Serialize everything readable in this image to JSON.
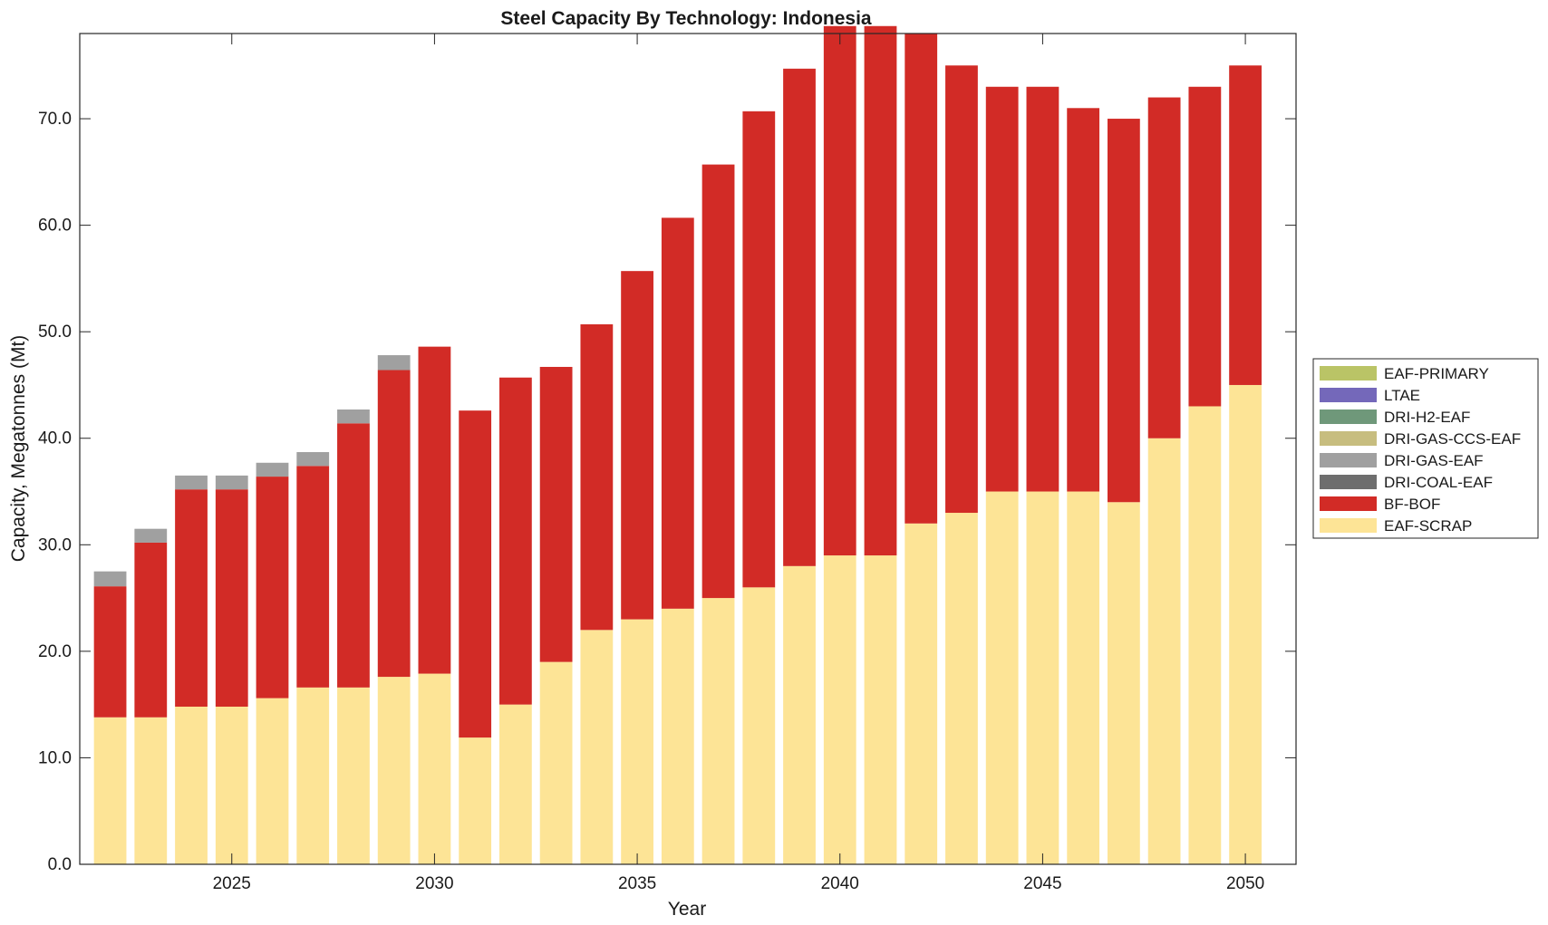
{
  "chart_data": {
    "type": "bar",
    "stacked": true,
    "title": "Steel Capacity By Technology: Indonesia",
    "xlabel": "Year",
    "ylabel": "Capacity, Megatonnes (Mt)",
    "xlim": [
      2021.25,
      2051.25
    ],
    "ylim": [
      0,
      78
    ],
    "x": [
      2022,
      2023,
      2024,
      2025,
      2026,
      2027,
      2028,
      2029,
      2030,
      2031,
      2032,
      2033,
      2034,
      2035,
      2036,
      2037,
      2038,
      2039,
      2040,
      2041,
      2042,
      2043,
      2044,
      2045,
      2046,
      2047,
      2048,
      2049,
      2050
    ],
    "x_ticks": [
      2025,
      2030,
      2035,
      2040,
      2045,
      2050
    ],
    "y_ticks": [
      0,
      10,
      20,
      30,
      40,
      50,
      60,
      70
    ],
    "y_tick_labels": [
      "0.0",
      "10.0",
      "20.0",
      "30.0",
      "40.0",
      "50.0",
      "60.0",
      "70.0"
    ],
    "series": [
      {
        "name": "EAF-SCRAP",
        "color": "#fde496",
        "values": [
          13.8,
          13.8,
          14.8,
          14.8,
          15.6,
          16.6,
          16.6,
          17.6,
          17.9,
          11.9,
          15.0,
          19.0,
          22.0,
          23.0,
          24.0,
          25.0,
          26.0,
          28.0,
          29.0,
          29.0,
          32.0,
          33.0,
          35.0,
          35.0,
          35.0,
          34.0,
          40.0,
          43.0,
          45.0
        ]
      },
      {
        "name": "BF-BOF",
        "color": "#d22b26",
        "values": [
          12.3,
          16.4,
          20.4,
          20.4,
          20.8,
          20.8,
          24.8,
          28.8,
          30.7,
          30.7,
          30.7,
          27.7,
          28.7,
          32.7,
          36.7,
          40.7,
          44.7,
          46.7,
          49.7,
          49.7,
          46.0,
          42.0,
          38.0,
          38.0,
          36.0,
          36.0,
          32.0,
          30.0,
          30.0
        ]
      },
      {
        "name": "DRI-COAL-EAF",
        "color": "#6e6e6e",
        "values": [
          0,
          0,
          0,
          0,
          0,
          0,
          0,
          0,
          0,
          0,
          0,
          0,
          0,
          0,
          0,
          0,
          0,
          0,
          0,
          0,
          0,
          0,
          0,
          0,
          0,
          0,
          0,
          0,
          0
        ]
      },
      {
        "name": "DRI-GAS-EAF",
        "color": "#a0a0a0",
        "values": [
          1.4,
          1.3,
          1.3,
          1.3,
          1.3,
          1.3,
          1.3,
          1.4,
          0,
          0,
          0,
          0,
          0,
          0,
          0,
          0,
          0,
          0,
          0,
          0,
          0,
          0,
          0,
          0,
          0,
          0,
          0,
          0,
          0
        ]
      },
      {
        "name": "DRI-GAS-CCS-EAF",
        "color": "#c7bd7f",
        "values": [
          0,
          0,
          0,
          0,
          0,
          0,
          0,
          0,
          0,
          0,
          0,
          0,
          0,
          0,
          0,
          0,
          0,
          0,
          0,
          0,
          0,
          0,
          0,
          0,
          0,
          0,
          0,
          0,
          0
        ]
      },
      {
        "name": "DRI-H2-EAF",
        "color": "#6f987a",
        "values": [
          0,
          0,
          0,
          0,
          0,
          0,
          0,
          0,
          0,
          0,
          0,
          0,
          0,
          0,
          0,
          0,
          0,
          0,
          0,
          0,
          0,
          0,
          0,
          0,
          0,
          0,
          0,
          0,
          0
        ]
      },
      {
        "name": "LTAE",
        "color": "#7468ba",
        "values": [
          0,
          0,
          0,
          0,
          0,
          0,
          0,
          0,
          0,
          0,
          0,
          0,
          0,
          0,
          0,
          0,
          0,
          0,
          0,
          0,
          0,
          0,
          0,
          0,
          0,
          0,
          0,
          0,
          0
        ]
      },
      {
        "name": "EAF-PRIMARY",
        "color": "#bac466",
        "values": [
          0,
          0,
          0,
          0,
          0,
          0,
          0,
          0,
          0,
          0,
          0,
          0,
          0,
          0,
          0,
          0,
          0,
          0,
          0,
          0,
          0,
          0,
          0,
          0,
          0,
          0,
          0,
          0,
          0
        ]
      }
    ],
    "legend": {
      "position": "right",
      "entries": [
        "EAF-PRIMARY",
        "LTAE",
        "DRI-H2-EAF",
        "DRI-GAS-CCS-EAF",
        "DRI-GAS-EAF",
        "DRI-COAL-EAF",
        "BF-BOF",
        "EAF-SCRAP"
      ]
    }
  }
}
